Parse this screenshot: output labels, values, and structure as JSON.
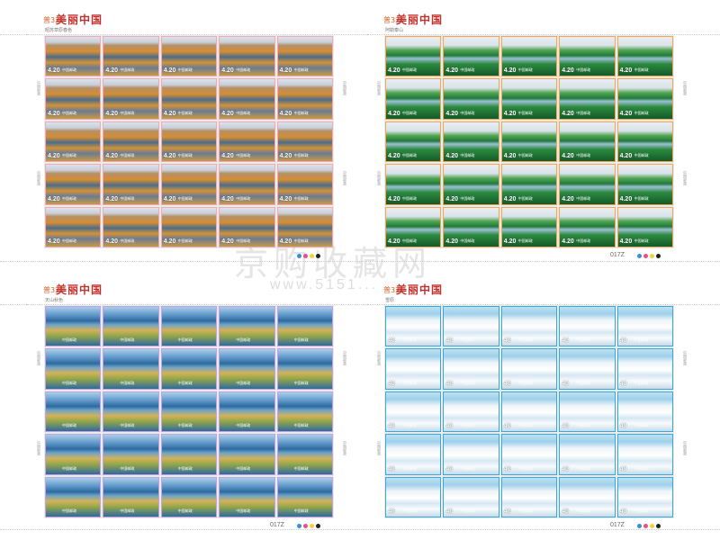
{
  "watermark": {
    "text": "京购收藏网",
    "url": "www.5151..."
  },
  "sheets": [
    {
      "id": "tl",
      "badge": "普32",
      "logo": "美丽中国",
      "title": "昭苏草原春色",
      "code": "",
      "value": "4.20",
      "country": "中国邮政",
      "side": [
        "中国邮政",
        "中国邮政"
      ],
      "accent": "#f3a8b4"
    },
    {
      "id": "tr",
      "badge": "普32",
      "logo": "美丽中国",
      "title": "阿勒泰山",
      "code": "017Z",
      "value": "4.20",
      "country": "中国邮政",
      "side": [
        "中国邮政",
        "中国邮政"
      ],
      "accent": "#f3a552"
    },
    {
      "id": "bl",
      "badge": "普32",
      "logo": "美丽中国",
      "title": "天山秋色",
      "code": "017Z",
      "value": "",
      "country": "中国邮政",
      "side": [
        "中国邮政",
        "中国邮政"
      ],
      "accent": "#c3a1e4"
    },
    {
      "id": "br",
      "badge": "普32",
      "logo": "美丽中国",
      "title": "雪原",
      "code": "017Z",
      "value": "40",
      "country": "中国邮政",
      "side": [
        "中国邮政",
        "中国邮政"
      ],
      "accent": "#39a9dc"
    }
  ],
  "colors": {
    "dot1": "#3a8fd6",
    "dot2": "#e84f8c",
    "dot3": "#f3d13b",
    "dot4": "#222222"
  }
}
